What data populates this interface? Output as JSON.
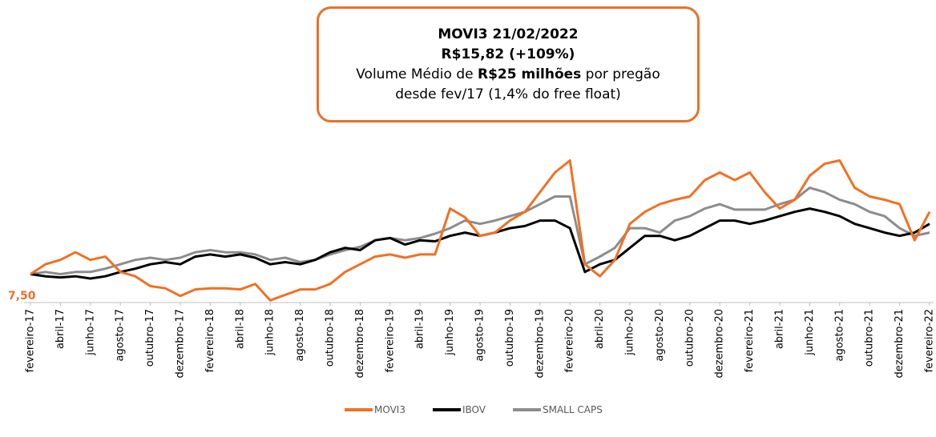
{
  "chart_data": {
    "type": "line",
    "annotation": {
      "line1": "MOVI3 21/02/2022",
      "line2": "R$15,82 (+109%)",
      "line3a": "Volume Médio de ",
      "line3b": "R$25 milhões",
      "line3c": " por pregão",
      "line4": "desde fev/17 (1,4% do free float)"
    },
    "categories": [
      "fevereiro-17",
      null,
      "abril-17",
      null,
      "junho-17",
      null,
      "agosto-17",
      null,
      "outubro-17",
      null,
      "dezembro-17",
      null,
      "fevereiro-18",
      null,
      "abril-18",
      null,
      "junho-18",
      null,
      "agosto-18",
      null,
      "outubro-18",
      null,
      "dezembro-18",
      null,
      "fevereiro-19",
      null,
      "abril-19",
      null,
      "junho-19",
      null,
      "agosto-19",
      null,
      "outubro-19",
      null,
      "dezembro-19",
      null,
      "fevereiro-20",
      null,
      "abril-20",
      null,
      "junho-20",
      null,
      "agosto-20",
      null,
      "outubro-20",
      null,
      "dezembro-20",
      null,
      "fevereiro-21",
      null,
      "abril-21",
      null,
      "junho-21",
      null,
      "agosto-21",
      null,
      "outubro-21",
      null,
      "dezembro-21",
      null,
      "fevereiro-22"
    ],
    "series": [
      {
        "name": "MOVI3",
        "color": "#f07122",
        "values": [
          10.1,
          11.0,
          11.4,
          12.1,
          11.4,
          11.7,
          10.3,
          9.9,
          9.0,
          8.8,
          8.1,
          8.7,
          8.8,
          8.8,
          8.7,
          9.2,
          7.7,
          8.2,
          8.7,
          8.7,
          9.2,
          10.3,
          11.0,
          11.7,
          11.9,
          11.6,
          11.9,
          11.9,
          16.1,
          15.3,
          13.6,
          13.9,
          15.0,
          15.8,
          17.6,
          19.4,
          20.5,
          11.0,
          9.9,
          11.4,
          14.7,
          15.8,
          16.5,
          16.9,
          17.2,
          18.7,
          19.4,
          18.7,
          19.4,
          17.6,
          16.1,
          16.9,
          19.1,
          20.2,
          20.5,
          18.0,
          17.2,
          16.9,
          16.5,
          13.2,
          15.8
        ]
      },
      {
        "name": "IBOV",
        "color": "#000000",
        "values": [
          10.1,
          9.9,
          9.8,
          9.9,
          9.7,
          9.9,
          10.3,
          10.6,
          11.0,
          11.2,
          11.0,
          11.7,
          11.9,
          11.7,
          11.9,
          11.6,
          11.0,
          11.2,
          11.0,
          11.4,
          12.1,
          12.5,
          12.3,
          13.2,
          13.4,
          12.8,
          13.2,
          13.1,
          13.6,
          13.9,
          13.6,
          13.9,
          14.3,
          14.5,
          15.0,
          15.0,
          14.3,
          10.3,
          11.0,
          11.4,
          12.5,
          13.6,
          13.6,
          13.2,
          13.6,
          14.3,
          15.0,
          15.0,
          14.7,
          15.0,
          15.4,
          15.8,
          16.1,
          15.8,
          15.4,
          14.7,
          14.3,
          13.9,
          13.6,
          13.9,
          14.7
        ]
      },
      {
        "name": "SMALL CAPS",
        "color": "#8c8c8c",
        "values": [
          10.1,
          10.3,
          10.1,
          10.3,
          10.3,
          10.6,
          11.0,
          11.4,
          11.6,
          11.4,
          11.6,
          12.1,
          12.3,
          12.1,
          12.1,
          11.9,
          11.4,
          11.6,
          11.2,
          11.4,
          11.9,
          12.3,
          12.6,
          13.2,
          13.4,
          13.2,
          13.4,
          13.8,
          14.3,
          15.0,
          14.7,
          15.0,
          15.4,
          15.8,
          16.5,
          17.2,
          17.2,
          11.0,
          11.7,
          12.5,
          14.3,
          14.3,
          13.9,
          15.0,
          15.4,
          16.1,
          16.5,
          16.0,
          16.0,
          16.0,
          16.5,
          16.9,
          18.0,
          17.6,
          16.9,
          16.5,
          15.8,
          15.4,
          14.3,
          13.6,
          13.9
        ]
      }
    ],
    "ylim": [
      7.5,
      22
    ],
    "yticks": [
      {
        "value": 7.5,
        "label": "7,50"
      }
    ],
    "legend": "bottom"
  }
}
